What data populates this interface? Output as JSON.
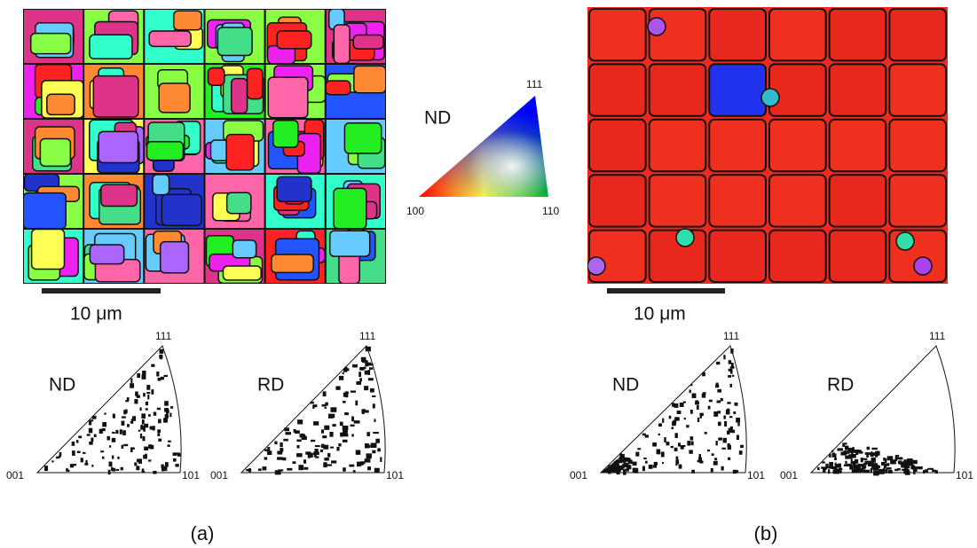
{
  "key": {
    "title": "ND",
    "top": "111",
    "left": "100",
    "right": "110"
  },
  "panels": [
    {
      "label": "(a)",
      "scale_bar": "10 μm",
      "pole_figures": [
        {
          "direction": "ND",
          "top": "111",
          "left": "001",
          "right": "101"
        },
        {
          "direction": "RD",
          "top": "111",
          "left": "001",
          "right": "101"
        }
      ]
    },
    {
      "label": "(b)",
      "scale_bar": "10 μm",
      "pole_figures": [
        {
          "direction": "ND",
          "top": "111",
          "left": "001",
          "right": "101"
        },
        {
          "direction": "RD",
          "top": "111",
          "left": "001",
          "right": "101"
        }
      ]
    }
  ]
}
